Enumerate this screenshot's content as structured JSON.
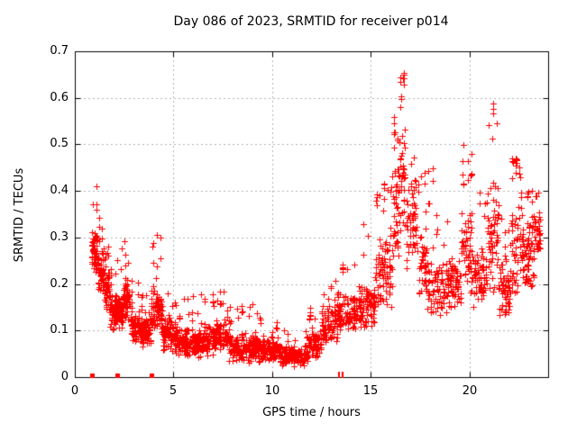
{
  "chart_data": {
    "type": "scatter",
    "title": "Day 086 of 2023, SRMTID for receiver p014",
    "xlabel": "GPS time / hours",
    "ylabel": "SRMTID / TECUs",
    "xlim": [
      0,
      24
    ],
    "ylim": [
      0,
      0.7
    ],
    "xticks": [
      [
        0,
        "0"
      ],
      [
        5,
        "5"
      ],
      [
        10,
        "10"
      ],
      [
        15,
        "15"
      ],
      [
        20,
        "20"
      ]
    ],
    "yticks": [
      [
        0,
        "0"
      ],
      [
        0.1,
        "0.1"
      ],
      [
        0.2,
        "0.2"
      ],
      [
        0.3,
        "0.3"
      ],
      [
        0.4,
        "0.4"
      ],
      [
        0.5,
        "0.5"
      ],
      [
        0.6,
        "0.6"
      ],
      [
        0.7,
        "0.7"
      ]
    ],
    "grid": true,
    "grid_style": "dotted",
    "legend": null,
    "marker": "plus-icon",
    "marker_size_px": 7,
    "marker_color": "#ff0000",
    "grid_color": "#b2b2b2",
    "border_color": "#000000",
    "background_color": "#ffffff",
    "seed": 20230086,
    "zero_square_markers_t": [
      0.87,
      2.15,
      3.89
    ],
    "zero_bar_markers_t": [
      13.37,
      13.51
    ],
    "envelope_segments_comment": "each segment = [t_start_h, t_end_h, band_min_TECU, band_max_TECU, spike_max_TECU, point_count, spike_fraction] read from the plotted point cloud",
    "envelope_segments": [
      [
        0.85,
        1.15,
        0.22,
        0.32,
        0.41,
        55,
        0.12
      ],
      [
        1.15,
        1.45,
        0.17,
        0.28,
        0.35,
        55,
        0.1
      ],
      [
        1.45,
        1.75,
        0.13,
        0.24,
        0.3,
        50,
        0.08
      ],
      [
        1.75,
        2.1,
        0.1,
        0.19,
        0.24,
        55,
        0.06
      ],
      [
        2.1,
        2.45,
        0.1,
        0.18,
        0.28,
        55,
        0.1
      ],
      [
        2.45,
        2.8,
        0.12,
        0.22,
        0.3,
        55,
        0.1
      ],
      [
        2.8,
        3.3,
        0.07,
        0.15,
        0.22,
        70,
        0.08
      ],
      [
        3.3,
        3.85,
        0.06,
        0.13,
        0.18,
        75,
        0.06
      ],
      [
        3.85,
        4.45,
        0.08,
        0.2,
        0.31,
        85,
        0.13
      ],
      [
        4.45,
        5.2,
        0.05,
        0.13,
        0.19,
        95,
        0.07
      ],
      [
        5.2,
        6.3,
        0.04,
        0.11,
        0.18,
        130,
        0.06
      ],
      [
        6.3,
        7.1,
        0.04,
        0.12,
        0.18,
        100,
        0.07
      ],
      [
        7.1,
        7.8,
        0.05,
        0.13,
        0.19,
        90,
        0.08
      ],
      [
        7.8,
        9.3,
        0.03,
        0.1,
        0.16,
        170,
        0.06
      ],
      [
        9.3,
        10.5,
        0.03,
        0.09,
        0.13,
        140,
        0.05
      ],
      [
        10.5,
        11.8,
        0.02,
        0.07,
        0.1,
        150,
        0.05
      ],
      [
        11.8,
        12.5,
        0.03,
        0.11,
        0.15,
        80,
        0.07
      ],
      [
        12.5,
        13.3,
        0.06,
        0.16,
        0.21,
        85,
        0.08
      ],
      [
        13.3,
        14.3,
        0.09,
        0.19,
        0.25,
        95,
        0.08
      ],
      [
        14.3,
        15.2,
        0.09,
        0.21,
        0.33,
        90,
        0.1
      ],
      [
        15.2,
        16.1,
        0.14,
        0.33,
        0.42,
        90,
        0.12
      ],
      [
        16.1,
        16.45,
        0.22,
        0.48,
        0.56,
        45,
        0.18
      ],
      [
        16.45,
        16.75,
        0.28,
        0.56,
        0.665,
        45,
        0.18
      ],
      [
        16.75,
        17.3,
        0.22,
        0.45,
        0.54,
        55,
        0.12
      ],
      [
        17.3,
        17.85,
        0.16,
        0.33,
        0.47,
        45,
        0.1
      ],
      [
        17.85,
        18.25,
        0.1,
        0.28,
        0.45,
        30,
        0.12
      ],
      [
        18.25,
        19.0,
        0.12,
        0.27,
        0.35,
        60,
        0.08
      ],
      [
        19.0,
        19.6,
        0.14,
        0.27,
        0.33,
        55,
        0.08
      ],
      [
        19.6,
        20.2,
        0.17,
        0.38,
        0.5,
        65,
        0.1
      ],
      [
        20.2,
        20.9,
        0.13,
        0.3,
        0.4,
        60,
        0.08
      ],
      [
        20.9,
        21.5,
        0.16,
        0.44,
        0.59,
        65,
        0.12
      ],
      [
        21.5,
        22.1,
        0.12,
        0.27,
        0.35,
        60,
        0.08
      ],
      [
        22.1,
        22.65,
        0.17,
        0.41,
        0.47,
        60,
        0.1
      ],
      [
        22.65,
        23.3,
        0.17,
        0.37,
        0.4,
        75,
        0.08
      ],
      [
        23.3,
        23.6,
        0.26,
        0.36,
        0.4,
        35,
        0.08
      ]
    ]
  }
}
